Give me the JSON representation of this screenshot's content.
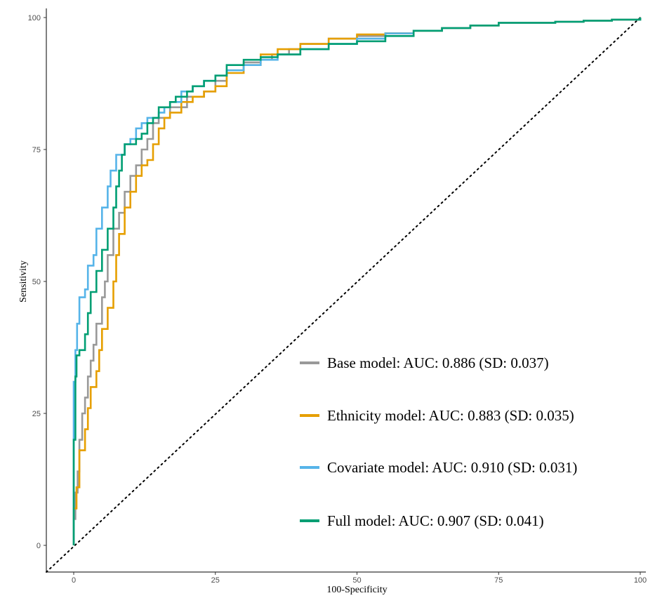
{
  "chart_data": {
    "type": "line",
    "title": "",
    "xlabel": "100-Specificity",
    "ylabel": "Sensitivity",
    "xlim": [
      0,
      100
    ],
    "ylim": [
      0,
      100
    ],
    "x_ticks": [
      0,
      25,
      50,
      75,
      100
    ],
    "y_ticks": [
      0,
      25,
      50,
      75,
      100
    ],
    "grid": false,
    "legend_position": "bottom-right",
    "reference_line": {
      "style": "dotted",
      "color": "#000000",
      "from": [
        0,
        0
      ],
      "to": [
        100,
        100
      ]
    },
    "series": [
      {
        "name": "Base model: AUC: 0.886 (SD: 0.037)",
        "color": "#999999",
        "points": [
          [
            0,
            0
          ],
          [
            0,
            5
          ],
          [
            0.3,
            10
          ],
          [
            0.7,
            14
          ],
          [
            1,
            20
          ],
          [
            1.5,
            25
          ],
          [
            2,
            28
          ],
          [
            2.5,
            32
          ],
          [
            3,
            35
          ],
          [
            3.5,
            38
          ],
          [
            4,
            42
          ],
          [
            5,
            47
          ],
          [
            5.5,
            50
          ],
          [
            6,
            55
          ],
          [
            7,
            60
          ],
          [
            8,
            63
          ],
          [
            9,
            67
          ],
          [
            10,
            70
          ],
          [
            11,
            72
          ],
          [
            12,
            75
          ],
          [
            13,
            77
          ],
          [
            14,
            80
          ],
          [
            15,
            81
          ],
          [
            17,
            83
          ],
          [
            20,
            85
          ],
          [
            23,
            86
          ],
          [
            25,
            88
          ],
          [
            27,
            90
          ],
          [
            30,
            91.5
          ],
          [
            33,
            92
          ],
          [
            35,
            93
          ],
          [
            38,
            94
          ],
          [
            40,
            95
          ],
          [
            45,
            96
          ],
          [
            50,
            96.5
          ],
          [
            55,
            97
          ],
          [
            60,
            97.5
          ],
          [
            65,
            98
          ],
          [
            70,
            98.5
          ],
          [
            75,
            99
          ],
          [
            80,
            99
          ],
          [
            85,
            99.2
          ],
          [
            90,
            99.4
          ],
          [
            95,
            99.6
          ],
          [
            100,
            100
          ]
        ]
      },
      {
        "name": "Ethnicity model: AUC: 0.883 (SD: 0.035)",
        "color": "#E69F00",
        "points": [
          [
            0,
            0
          ],
          [
            0,
            7
          ],
          [
            0.5,
            11
          ],
          [
            1,
            18
          ],
          [
            2,
            22
          ],
          [
            2.5,
            26
          ],
          [
            3,
            30
          ],
          [
            4,
            33
          ],
          [
            4.5,
            37
          ],
          [
            5,
            41
          ],
          [
            6,
            45
          ],
          [
            7,
            50
          ],
          [
            7.5,
            55
          ],
          [
            8,
            59
          ],
          [
            9,
            64
          ],
          [
            10,
            67
          ],
          [
            11,
            70
          ],
          [
            12,
            72
          ],
          [
            13,
            73
          ],
          [
            14,
            76
          ],
          [
            15,
            79
          ],
          [
            16,
            81
          ],
          [
            17,
            82
          ],
          [
            19,
            84
          ],
          [
            21,
            85
          ],
          [
            23,
            86
          ],
          [
            25,
            87
          ],
          [
            27,
            89.5
          ],
          [
            30,
            91
          ],
          [
            33,
            93
          ],
          [
            36,
            94
          ],
          [
            40,
            95
          ],
          [
            45,
            96
          ],
          [
            50,
            96.8
          ],
          [
            55,
            97
          ],
          [
            60,
            97.5
          ],
          [
            65,
            98
          ],
          [
            70,
            98.5
          ],
          [
            75,
            99
          ],
          [
            80,
            99
          ],
          [
            85,
            99.2
          ],
          [
            90,
            99.4
          ],
          [
            95,
            99.6
          ],
          [
            100,
            100
          ]
        ]
      },
      {
        "name": "Covariate model: AUC: 0.910 (SD: 0.031)",
        "color": "#56B4E9",
        "points": [
          [
            0,
            0
          ],
          [
            0,
            31
          ],
          [
            0.3,
            37
          ],
          [
            0.6,
            42
          ],
          [
            1,
            47
          ],
          [
            2,
            48.5
          ],
          [
            2.5,
            53
          ],
          [
            3.5,
            55
          ],
          [
            4,
            60
          ],
          [
            5,
            64
          ],
          [
            6,
            68
          ],
          [
            6.5,
            71
          ],
          [
            7.5,
            74
          ],
          [
            9,
            76
          ],
          [
            10,
            77
          ],
          [
            11,
            79
          ],
          [
            12,
            80
          ],
          [
            13,
            81
          ],
          [
            15,
            82
          ],
          [
            16,
            83
          ],
          [
            17,
            84
          ],
          [
            19,
            86
          ],
          [
            21,
            87
          ],
          [
            23,
            88
          ],
          [
            25,
            89
          ],
          [
            27,
            90
          ],
          [
            30,
            91
          ],
          [
            33,
            92
          ],
          [
            36,
            93
          ],
          [
            40,
            94
          ],
          [
            45,
            95
          ],
          [
            50,
            96
          ],
          [
            55,
            97
          ],
          [
            60,
            97.5
          ],
          [
            65,
            98
          ],
          [
            70,
            98.5
          ],
          [
            75,
            99
          ],
          [
            80,
            99
          ],
          [
            85,
            99.2
          ],
          [
            90,
            99.4
          ],
          [
            95,
            99.6
          ],
          [
            100,
            100
          ]
        ]
      },
      {
        "name": "Full model: AUC: 0.907 (SD: 0.041)",
        "color": "#009E73",
        "points": [
          [
            0,
            0
          ],
          [
            0,
            20
          ],
          [
            0.3,
            32
          ],
          [
            0.5,
            36
          ],
          [
            1,
            37
          ],
          [
            2,
            40
          ],
          [
            2.5,
            44
          ],
          [
            3,
            48
          ],
          [
            4,
            52
          ],
          [
            5,
            56
          ],
          [
            6,
            60
          ],
          [
            7,
            64
          ],
          [
            7.5,
            68
          ],
          [
            8,
            71
          ],
          [
            8.5,
            74
          ],
          [
            9,
            76
          ],
          [
            11,
            77
          ],
          [
            12,
            78
          ],
          [
            13,
            80
          ],
          [
            14,
            81
          ],
          [
            15,
            83
          ],
          [
            17,
            84
          ],
          [
            18,
            85
          ],
          [
            20,
            86
          ],
          [
            21,
            87
          ],
          [
            23,
            88
          ],
          [
            25,
            89
          ],
          [
            27,
            91
          ],
          [
            30,
            92
          ],
          [
            33,
            92.5
          ],
          [
            36,
            93
          ],
          [
            40,
            94
          ],
          [
            45,
            95
          ],
          [
            50,
            95.5
          ],
          [
            55,
            96.5
          ],
          [
            60,
            97.5
          ],
          [
            65,
            98
          ],
          [
            70,
            98.5
          ],
          [
            75,
            99
          ],
          [
            80,
            99
          ],
          [
            85,
            99.2
          ],
          [
            90,
            99.4
          ],
          [
            95,
            99.6
          ],
          [
            100,
            100
          ]
        ]
      }
    ]
  }
}
